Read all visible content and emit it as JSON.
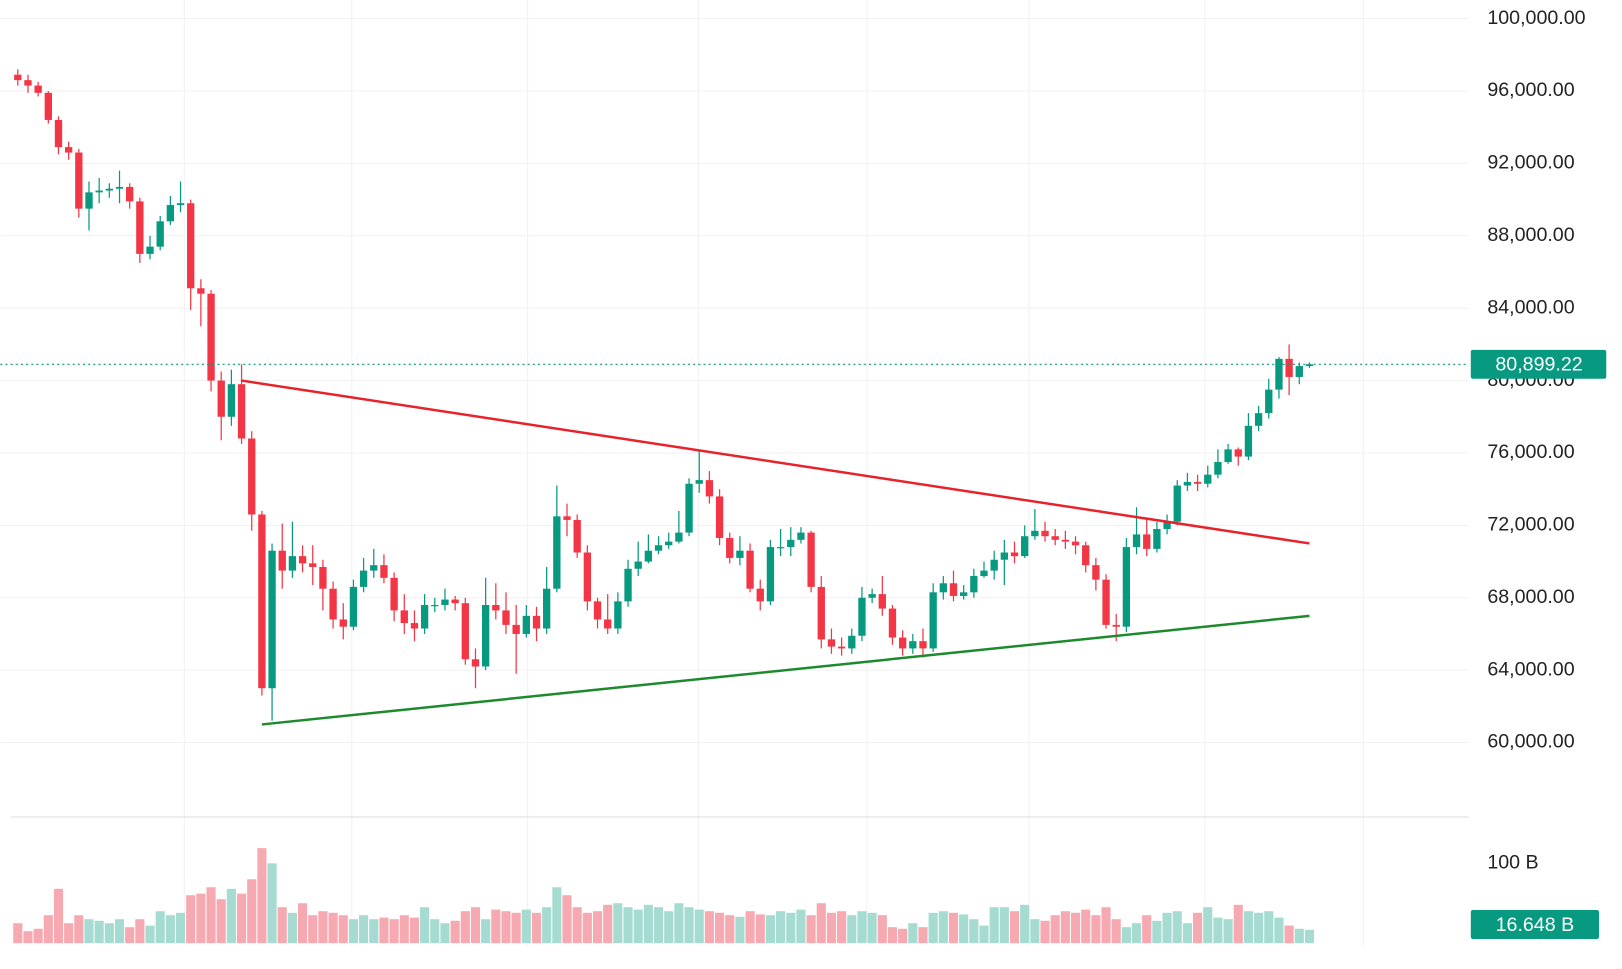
{
  "chart_data": {
    "type": "candlestick",
    "up_color": "#089981",
    "down_color": "#f23645",
    "grid": true,
    "ylim": [
      55886,
      101029
    ],
    "yticks": [
      {
        "value": 60000,
        "label": "60,000.00"
      },
      {
        "value": 64000,
        "label": "64,000.00"
      },
      {
        "value": 68000,
        "label": "68,000.00"
      },
      {
        "value": 72000,
        "label": "72,000.00"
      },
      {
        "value": 76000,
        "label": "76,000.00"
      },
      {
        "value": 80000,
        "label": "80,000.00"
      },
      {
        "value": 84000,
        "label": "84,000.00"
      },
      {
        "value": 88000,
        "label": "88,000.00"
      },
      {
        "value": 92000,
        "label": "92,000.00"
      },
      {
        "value": 96000,
        "label": "96,000.00"
      },
      {
        "value": 100000,
        "label": "100,000.00"
      }
    ],
    "open": [
      96900,
      96600,
      96300,
      95900,
      94400,
      92900,
      92600,
      89500,
      90400,
      90500,
      90600,
      90700,
      89900,
      87000,
      87400,
      88800,
      89700,
      89800,
      85100,
      84800,
      80000,
      78000,
      79800,
      76800,
      72600,
      63000,
      70600,
      69500,
      70300,
      69900,
      69700,
      68500,
      66800,
      66400,
      68600,
      69500,
      69800,
      69100,
      67300,
      66600,
      66300,
      67600,
      67600,
      67900,
      67700,
      64600,
      64200,
      67600,
      67300,
      66500,
      66000,
      67000,
      66300,
      68500,
      72500,
      72300,
      70500,
      67800,
      66800,
      66300,
      67800,
      69600,
      70000,
      70600,
      70900,
      71100,
      71600,
      74300,
      74500,
      73600,
      71300,
      70200,
      70600,
      68500,
      67800,
      70800,
      70800,
      71200,
      71600,
      68600,
      65700,
      65300,
      65200,
      65900,
      68000,
      68200,
      67400,
      65800,
      65200,
      65600,
      65200,
      68300,
      68800,
      68100,
      68300,
      69200,
      69500,
      70100,
      70500,
      70300,
      71400,
      71700,
      71400,
      71200,
      71100,
      70900,
      69800,
      69000,
      66500,
      66400,
      70800,
      71500,
      70700,
      71800,
      72200,
      74200,
      74400,
      74300,
      74800,
      75500,
      76200,
      75800,
      77500,
      78200,
      79500,
      81200,
      80200,
      80800
    ],
    "high": [
      97200,
      96900,
      96500,
      96000,
      94600,
      93200,
      92800,
      91000,
      91200,
      90900,
      91600,
      90900,
      90100,
      88000,
      89100,
      90200,
      91000,
      90000,
      85600,
      85000,
      80500,
      80600,
      80900,
      77200,
      72800,
      71000,
      72100,
      72200,
      70900,
      70900,
      70100,
      68900,
      67700,
      69000,
      70200,
      70700,
      70400,
      69400,
      68200,
      67300,
      68200,
      68000,
      68500,
      68100,
      68000,
      65200,
      69100,
      68800,
      68300,
      67600,
      67600,
      67500,
      69700,
      74200,
      73200,
      72600,
      70900,
      68000,
      68200,
      68300,
      70100,
      71100,
      71500,
      71400,
      71600,
      72800,
      74600,
      76200,
      75000,
      74000,
      71600,
      71400,
      71000,
      69000,
      71200,
      71800,
      71900,
      71900,
      71700,
      69200,
      66300,
      65800,
      66300,
      68600,
      68500,
      69200,
      67600,
      66200,
      66000,
      66300,
      68800,
      69200,
      69500,
      68700,
      69600,
      70000,
      70600,
      71200,
      71100,
      72000,
      72900,
      72200,
      71800,
      71700,
      71400,
      71100,
      70200,
      69300,
      67100,
      71300,
      73000,
      72400,
      72200,
      72600,
      74500,
      74900,
      74800,
      75300,
      76200,
      76500,
      76300,
      78200,
      78600,
      80100,
      81300,
      82000,
      81000,
      81000
    ],
    "low": [
      96300,
      95900,
      95700,
      94200,
      92500,
      92200,
      89000,
      88300,
      89800,
      90100,
      89800,
      89500,
      86500,
      86700,
      87200,
      88600,
      89300,
      83900,
      83000,
      79400,
      76700,
      77500,
      76500,
      71700,
      62600,
      61200,
      68500,
      69100,
      69400,
      68700,
      67300,
      66300,
      65700,
      66200,
      68300,
      69100,
      68800,
      66700,
      66000,
      65600,
      66000,
      67200,
      67300,
      67300,
      64300,
      63000,
      64000,
      66800,
      66000,
      63800,
      65800,
      65600,
      66000,
      68300,
      71400,
      70200,
      67300,
      66300,
      66000,
      66000,
      67500,
      69200,
      69900,
      70400,
      70700,
      71000,
      71400,
      73800,
      73200,
      70900,
      69900,
      69800,
      68300,
      67300,
      67600,
      70300,
      70300,
      71000,
      68300,
      65200,
      64900,
      64800,
      64900,
      65600,
      67700,
      67000,
      65400,
      64800,
      64900,
      64700,
      65000,
      67900,
      67800,
      67900,
      68000,
      69100,
      69000,
      68700,
      69900,
      70200,
      71200,
      71100,
      70900,
      70700,
      70400,
      69400,
      68400,
      66300,
      65600,
      66100,
      70400,
      70300,
      70500,
      71500,
      72000,
      73900,
      73900,
      74100,
      74600,
      75400,
      75300,
      75600,
      77200,
      77900,
      79000,
      79200,
      79800,
      80700
    ],
    "close": [
      96600,
      96300,
      95900,
      94400,
      92900,
      92600,
      89500,
      90400,
      90500,
      90600,
      90700,
      89900,
      87000,
      87400,
      88800,
      89700,
      89800,
      85100,
      84800,
      80000,
      78000,
      79800,
      76800,
      72600,
      63000,
      70600,
      69500,
      70300,
      69900,
      69700,
      68500,
      66800,
      66400,
      68600,
      69500,
      69800,
      69100,
      67300,
      66600,
      66300,
      67600,
      67600,
      67900,
      67700,
      64600,
      64200,
      67600,
      67300,
      66500,
      66000,
      67000,
      66300,
      68500,
      72500,
      72300,
      70500,
      67800,
      66800,
      66300,
      67800,
      69600,
      70000,
      70600,
      70900,
      71100,
      71600,
      74300,
      74500,
      73600,
      71300,
      70200,
      70600,
      68500,
      67800,
      70800,
      70800,
      71200,
      71600,
      68600,
      65700,
      65300,
      65200,
      65900,
      68000,
      68200,
      67400,
      65800,
      65200,
      65600,
      65200,
      68300,
      68800,
      68100,
      68300,
      69200,
      69500,
      70100,
      70500,
      70300,
      71400,
      71700,
      71400,
      71200,
      71100,
      70900,
      69800,
      69000,
      66500,
      66400,
      70800,
      71500,
      70700,
      71800,
      72200,
      74200,
      74400,
      74300,
      74800,
      75500,
      76200,
      75800,
      77500,
      78200,
      79500,
      81200,
      80200,
      80800,
      80899.22
    ],
    "last_price": {
      "value": 80899.22,
      "label": "80,899.22"
    },
    "trendlines": [
      {
        "color": "#e8222b",
        "x": [
          22,
          127
        ],
        "y": [
          80000,
          71000
        ]
      },
      {
        "color": "#1e8a2e",
        "x": [
          24,
          127
        ],
        "y": [
          61000,
          67000
        ]
      }
    ],
    "volume": {
      "up_color": "#a6dbd2",
      "down_color": "#f6a9b0",
      "ylim": [
        0,
        158
      ],
      "yticks": [
        {
          "value": 100,
          "label": "100 B"
        }
      ],
      "values": [
        25,
        15,
        18,
        35,
        68,
        25,
        35,
        30,
        28,
        25,
        30,
        20,
        30,
        22,
        40,
        35,
        38,
        60,
        62,
        70,
        55,
        68,
        62,
        80,
        119,
        100,
        45,
        38,
        50,
        35,
        40,
        38,
        35,
        30,
        35,
        30,
        32,
        30,
        35,
        32,
        45,
        30,
        25,
        28,
        40,
        45,
        30,
        42,
        40,
        38,
        42,
        38,
        45,
        70,
        60,
        45,
        38,
        40,
        48,
        50,
        45,
        42,
        48,
        45,
        40,
        50,
        45,
        42,
        40,
        38,
        35,
        33,
        40,
        36,
        35,
        40,
        38,
        42,
        35,
        50,
        38,
        40,
        35,
        40,
        38,
        35,
        20,
        18,
        25,
        20,
        38,
        40,
        38,
        36,
        30,
        22,
        45,
        45,
        40,
        48,
        30,
        28,
        35,
        40,
        38,
        42,
        35,
        45,
        30,
        20,
        25,
        35,
        28,
        38,
        40,
        25,
        38,
        45,
        32,
        30,
        48,
        40,
        38,
        40,
        32,
        22,
        18,
        16.648
      ],
      "last": {
        "value": 16.648,
        "label": "16.648 B"
      }
    }
  }
}
